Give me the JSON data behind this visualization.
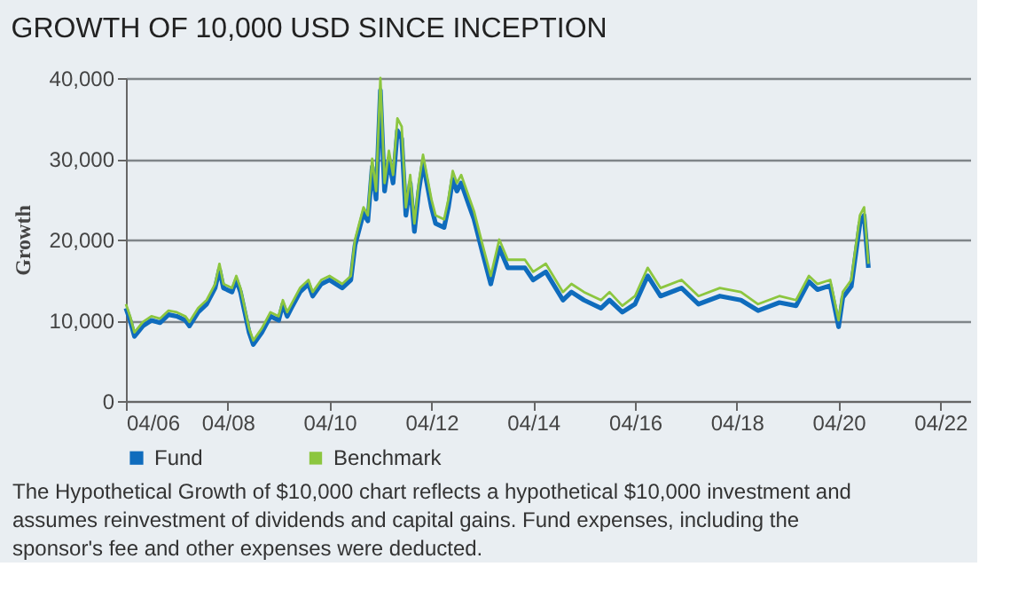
{
  "chart_data": {
    "type": "line",
    "title": "GROWTH OF 10,000 USD SINCE INCEPTION",
    "ylabel": "Growth",
    "x": [
      "2006-04",
      "2006-05",
      "2006-06",
      "2006-08",
      "2006-10",
      "2006-12",
      "2007-02",
      "2007-04",
      "2007-06",
      "2007-07",
      "2007-09",
      "2007-11",
      "2008-01",
      "2008-02",
      "2008-03",
      "2008-05",
      "2008-06",
      "2008-07",
      "2008-09",
      "2008-10",
      "2008-12",
      "2009-02",
      "2009-04",
      "2009-05",
      "2009-06",
      "2009-07",
      "2009-09",
      "2009-11",
      "2009-12",
      "2010-02",
      "2010-04",
      "2010-07",
      "2010-09",
      "2010-10",
      "2010-12",
      "2011-01",
      "2011-02",
      "2011-03",
      "2011-04",
      "2011-05",
      "2011-06",
      "2011-07",
      "2011-08",
      "2011-09",
      "2011-10",
      "2011-11",
      "2011-12",
      "2012-01",
      "2012-02",
      "2012-04",
      "2012-05",
      "2012-07",
      "2012-08",
      "2012-09",
      "2012-10",
      "2012-11",
      "2013-01",
      "2013-02",
      "2013-04",
      "2013-06",
      "2013-08",
      "2013-10",
      "2014-02",
      "2014-04",
      "2014-07",
      "2014-11",
      "2015-01",
      "2015-04",
      "2015-08",
      "2015-10",
      "2016-01",
      "2016-04",
      "2016-07",
      "2016-10",
      "2017-03",
      "2017-07",
      "2017-12",
      "2018-05",
      "2018-09",
      "2019-02",
      "2019-06",
      "2019-09",
      "2019-11",
      "2020-02",
      "2020-04",
      "2020-05",
      "2020-07",
      "2020-09",
      "2020-10",
      "2020-11"
    ],
    "series": [
      {
        "name": "Fund",
        "color": "#0f6cbd",
        "values": [
          11500,
          10000,
          8000,
          9300,
          10000,
          9700,
          10700,
          10500,
          10000,
          9300,
          11000,
          12000,
          14000,
          16300,
          14000,
          13500,
          15000,
          13500,
          8500,
          7000,
          8500,
          10500,
          10000,
          12000,
          10500,
          11500,
          13500,
          14500,
          13000,
          14500,
          15000,
          14000,
          15000,
          19300,
          23300,
          22300,
          29000,
          25000,
          38500,
          26000,
          30000,
          27000,
          33500,
          32500,
          23000,
          27000,
          21000,
          26000,
          29500,
          24000,
          22000,
          21500,
          24000,
          27500,
          26000,
          27000,
          24000,
          22500,
          18500,
          14500,
          19000,
          16500,
          16500,
          15000,
          16000,
          12500,
          13500,
          12500,
          11500,
          12500,
          11000,
          12000,
          15500,
          13000,
          14000,
          12000,
          13000,
          12500,
          11200,
          12200,
          11800,
          14800,
          13800,
          14300,
          9200,
          12800,
          14200,
          22000,
          23000,
          16500
        ]
      },
      {
        "name": "Benchmark",
        "color": "#8cc63f",
        "values": [
          12000,
          10500,
          8500,
          9800,
          10500,
          10200,
          11200,
          11000,
          10500,
          9800,
          11500,
          12500,
          14500,
          17000,
          14500,
          14000,
          15500,
          14000,
          9000,
          7500,
          9000,
          11000,
          10500,
          12500,
          11000,
          12000,
          14000,
          15000,
          13500,
          15000,
          15500,
          14500,
          15500,
          20000,
          24000,
          23000,
          30000,
          26000,
          40000,
          27000,
          31000,
          28000,
          35000,
          34000,
          24000,
          28000,
          22000,
          27000,
          30500,
          25000,
          23000,
          22500,
          25000,
          28500,
          27000,
          28000,
          25000,
          23500,
          19500,
          15500,
          20000,
          17500,
          17500,
          16000,
          17000,
          13500,
          14500,
          13500,
          12500,
          13500,
          11800,
          13000,
          16500,
          14000,
          15000,
          13000,
          14000,
          13500,
          12000,
          13000,
          12500,
          15500,
          14500,
          15000,
          10000,
          13500,
          15000,
          23000,
          24000,
          17000
        ]
      }
    ],
    "xlim": [
      "2006-04",
      "2022-11"
    ],
    "xticks": [
      {
        "value": "2006-04",
        "label": "04/06"
      },
      {
        "value": "2008-04",
        "label": "04/08"
      },
      {
        "value": "2010-04",
        "label": "04/10"
      },
      {
        "value": "2012-04",
        "label": "04/12"
      },
      {
        "value": "2014-04",
        "label": "04/14"
      },
      {
        "value": "2016-04",
        "label": "04/16"
      },
      {
        "value": "2018-04",
        "label": "04/18"
      },
      {
        "value": "2020-04",
        "label": "04/20"
      },
      {
        "value": "2022-04",
        "label": "04/22"
      }
    ],
    "ylim": [
      0,
      40000
    ],
    "yticks": [
      0,
      {
        "value": 10000,
        "label": "10,000"
      },
      {
        "value": 20000,
        "label": "20,000"
      },
      {
        "value": 30000,
        "label": "30,000"
      },
      {
        "value": 40000,
        "label": "40,000"
      }
    ],
    "grid": "y",
    "legend": "bottom",
    "marker": "none",
    "line_style": "solid",
    "annotations": [
      "The Hypothetical Growth of $10,000 chart reflects a hypothetical $10,000 investment and assumes reinvestment of dividends and capital gains.  Fund expenses, including the sponsor's fee and other expenses were deducted."
    ]
  }
}
